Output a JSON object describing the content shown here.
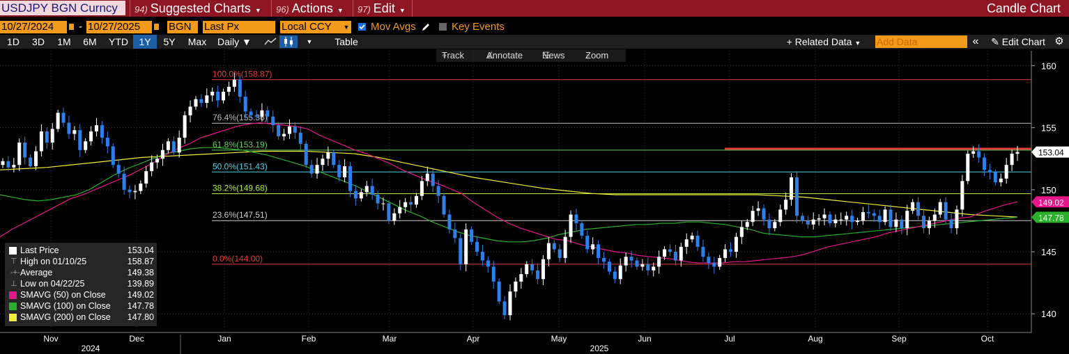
{
  "header": {
    "ticker": "USDJPY BGN Curncy",
    "menus": [
      {
        "num": "94)",
        "label": "Suggested Charts"
      },
      {
        "num": "96)",
        "label": "Actions"
      },
      {
        "num": "97)",
        "label": "Edit"
      }
    ],
    "chart_kind": "Candle Chart"
  },
  "settings": {
    "start_date": "10/27/2024",
    "end_date": "10/27/2025",
    "dash": "-",
    "source": "BGN",
    "field": "Last Px",
    "currency": "Local CCY",
    "mov_avgs": "Mov Avgs",
    "key_events": "Key Events"
  },
  "periods": [
    "1D",
    "3D",
    "1M",
    "6M",
    "YTD",
    "1Y",
    "5Y",
    "Max"
  ],
  "selected_period": "1Y",
  "frequency": "Daily",
  "table_label": "Table",
  "related_data": "+ Related Data",
  "add_data_placeholder": "Add Data",
  "collapse_label": "«",
  "edit_chart": "Edit Chart",
  "tools": {
    "track": "Track",
    "annotate": "Annotate",
    "news": "News",
    "zoom": "Zoom"
  },
  "legend": [
    {
      "name": "Last Price",
      "value": "153.04",
      "swatch": "#ffffff"
    },
    {
      "name": "High on 01/10/25",
      "value": "158.87",
      "icon": "high-marker"
    },
    {
      "name": "Average",
      "value": "149.38",
      "icon": "average-marker"
    },
    {
      "name": "Low on 04/22/25",
      "value": "139.89",
      "icon": "low-marker"
    },
    {
      "name": "SMAVG (50)  on Close",
      "value": "149.02",
      "swatch": "#e6168a"
    },
    {
      "name": "SMAVG (100)  on Close",
      "value": "147.78",
      "swatch": "#2ab02a"
    },
    {
      "name": "SMAVG (200)  on Close",
      "value": "147.80",
      "swatch": "#f2ef3a"
    }
  ],
  "colors": {
    "up": "#ffffff",
    "down": "#2f7fe8",
    "sma50": "#e6168a",
    "sma100": "#2ab02a",
    "sma200": "#f2ef3a",
    "accent": "#f39a1a",
    "header": "#8e1622"
  },
  "chart_data": {
    "type": "candlestick",
    "title": "USDJPY BGN Curncy",
    "y_ticks": [
      140,
      145,
      150,
      155,
      160
    ],
    "ylim": [
      138.5,
      161.2
    ],
    "x_ticks": [
      "Nov",
      "Dec",
      "Jan",
      "Feb",
      "Mar",
      "Apr",
      "May",
      "Jun",
      "Jul",
      "Aug",
      "Sep",
      "Oct"
    ],
    "years": [
      "2024",
      "2025"
    ],
    "last_price": 153.04,
    "high": {
      "date": "01/10/25",
      "value": 158.87
    },
    "low": {
      "date": "04/22/25",
      "value": 139.89
    },
    "average": 149.38,
    "fibonacci": [
      {
        "label": "100.0%(158.87)",
        "value": 158.87,
        "color": "#e23a3a"
      },
      {
        "label": "76.4%(155.36)",
        "value": 155.36,
        "color": "#bbbbbb"
      },
      {
        "label": "61.8%(153.19)",
        "value": 153.19,
        "color": "#5fd35f"
      },
      {
        "label": "50.0%(151.43)",
        "value": 151.43,
        "color": "#4fd2e6"
      },
      {
        "label": "38.2%(149.68)",
        "value": 149.68,
        "color": "#b5e83a"
      },
      {
        "label": "23.6%(147.51)",
        "value": 147.51,
        "color": "#cccccc"
      },
      {
        "label": "0.0%(144.00)",
        "value": 144.0,
        "color": "#e23a3a"
      }
    ],
    "resistance_level": 153.19,
    "axis_labels": [
      {
        "value": "153.04",
        "price": 153.04,
        "bg": "#ffffff",
        "fg": "#000000"
      },
      {
        "value": "149.02",
        "price": 149.02,
        "bg": "#e6168a",
        "fg": "#ffffff"
      },
      {
        "value": "147.78",
        "price": 147.78,
        "bg": "#2ab02a",
        "fg": "#ffffff"
      }
    ],
    "close_path": [
      152.3,
      151.8,
      152.0,
      153.8,
      152.6,
      151.9,
      153.1,
      154.7,
      153.8,
      154.9,
      156.2,
      155.4,
      154.5,
      154.8,
      153.2,
      153.9,
      154.7,
      155.2,
      154.2,
      153.5,
      152.0,
      151.3,
      150.0,
      149.8,
      149.9,
      150.5,
      151.5,
      152.2,
      152.5,
      153.2,
      153.9,
      153.0,
      154.2,
      156.0,
      156.7,
      157.3,
      157.0,
      157.6,
      157.9,
      157.2,
      157.9,
      158.3,
      158.87,
      157.5,
      156.3,
      156.0,
      155.9,
      156.4,
      155.9,
      155.2,
      154.3,
      154.5,
      155.1,
      154.6,
      153.7,
      152.0,
      151.3,
      152.0,
      152.5,
      153.0,
      152.0,
      151.0,
      151.9,
      149.9,
      149.3,
      149.8,
      150.3,
      149.6,
      148.9,
      148.9,
      147.5,
      148.1,
      148.6,
      149.0,
      148.8,
      149.5,
      150.7,
      151.3,
      150.3,
      149.5,
      148.0,
      146.8,
      146.1,
      144.0,
      146.8,
      145.8,
      145.0,
      144.3,
      143.8,
      142.6,
      141.0,
      139.89,
      141.8,
      142.6,
      143.2,
      144.0,
      143.5,
      142.8,
      144.4,
      145.7,
      145.2,
      144.5,
      146.2,
      148.0,
      147.3,
      146.3,
      145.2,
      145.6,
      144.5,
      144.2,
      143.4,
      142.8,
      143.9,
      144.6,
      144.3,
      143.8,
      144.0,
      143.5,
      143.8,
      144.6,
      145.2,
      145.0,
      144.3,
      145.4,
      146.0,
      146.3,
      145.4,
      144.6,
      144.1,
      143.8,
      144.5,
      145.2,
      145.0,
      146.2,
      147.0,
      147.4,
      148.3,
      148.5,
      147.6,
      146.9,
      147.4,
      148.4,
      149.2,
      151.0,
      147.9,
      147.5,
      147.2,
      147.6,
      147.7,
      148.0,
      147.3,
      147.6,
      147.6,
      147.9,
      147.4,
      147.5,
      148.2,
      148.1,
      147.9,
      147.4,
      148.4,
      147.0,
      147.6,
      146.9,
      148.3,
      149.0,
      147.9,
      146.9,
      147.5,
      148.0,
      149.0,
      147.6,
      146.9,
      148.4,
      150.7,
      152.9,
      153.1,
      152.6,
      151.6,
      151.4,
      150.6,
      150.9,
      152.0,
      152.9,
      153.04
    ],
    "sma50": [
      146.2,
      146.8,
      147.3,
      147.8,
      148.3,
      148.8,
      149.3,
      149.6,
      150.0,
      150.4,
      150.8,
      151.2,
      151.7,
      152.2,
      152.8,
      153.3,
      153.7,
      154.2,
      154.5,
      154.8,
      155.1,
      155.3,
      155.4,
      155.3,
      155.2,
      155.1,
      154.9,
      154.4,
      154.0,
      153.6,
      153.2,
      152.9,
      152.5,
      152.1,
      151.6,
      151.2,
      150.8,
      150.5,
      150.1,
      149.7,
      149.0,
      148.4,
      147.8,
      147.3,
      146.9,
      146.6,
      146.3,
      146.0,
      145.9,
      145.6,
      145.4,
      145.2,
      145.0,
      144.9,
      144.7,
      144.6,
      144.5,
      144.4,
      144.2,
      144.1,
      144.1,
      144.1,
      144.2,
      144.2,
      144.3,
      144.4,
      144.5,
      144.6,
      144.8,
      145.1,
      145.4,
      145.6,
      145.8,
      146.0,
      146.2,
      146.5,
      146.7,
      146.9,
      147.1,
      147.3,
      147.5,
      147.7,
      147.8,
      148.2,
      148.5,
      148.8,
      149.02
    ],
    "sma100": [
      149.6,
      149.4,
      149.2,
      149.1,
      149.2,
      149.4,
      149.6,
      150.0,
      150.6,
      151.2,
      151.7,
      152.1,
      152.5,
      152.9,
      153.1,
      153.3,
      153.4,
      153.4,
      153.3,
      153.2,
      153.0,
      152.8,
      152.5,
      152.2,
      151.9,
      151.5,
      151.1,
      150.7,
      150.3,
      149.8,
      149.3,
      148.8,
      148.3,
      147.9,
      147.4,
      147.0,
      146.6,
      146.3,
      146.1,
      145.9,
      145.8,
      145.8,
      145.9,
      146.1,
      146.4,
      146.6,
      146.8,
      146.9,
      147.0,
      147.1,
      147.2,
      147.2,
      147.3,
      147.3,
      147.4,
      147.4,
      147.3,
      147.2,
      147.0,
      146.8,
      146.5,
      146.4,
      146.3,
      146.2,
      146.2,
      146.3,
      146.4,
      146.5,
      146.6,
      146.7,
      146.8,
      146.9,
      147.0,
      147.1,
      147.2,
      147.3,
      147.4,
      147.5,
      147.6,
      147.7,
      147.78
    ],
    "sma200": [
      151.6,
      151.7,
      151.8,
      152.0,
      152.2,
      152.4,
      152.6,
      152.7,
      152.8,
      152.9,
      153.0,
      153.1,
      153.1,
      153.1,
      153.0,
      152.9,
      152.6,
      152.2,
      151.8,
      151.4,
      151.0,
      150.7,
      150.4,
      150.1,
      149.9,
      149.7,
      149.6,
      149.6,
      149.6,
      149.6,
      149.6,
      149.6,
      149.6,
      149.5,
      149.4,
      149.2,
      149.0,
      148.8,
      148.6,
      148.4,
      148.2,
      148.0,
      147.9,
      147.8
    ]
  }
}
